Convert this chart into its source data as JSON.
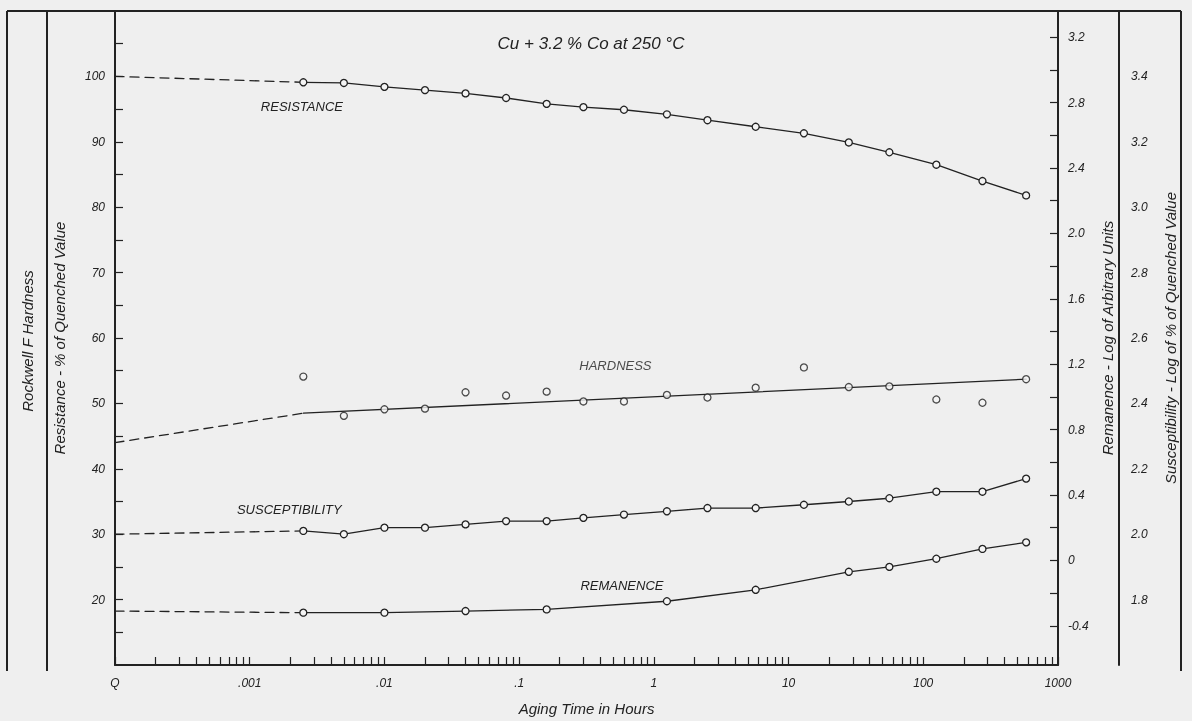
{
  "chart_data": {
    "type": "line",
    "title": "Cu + 3.2 % Co at 250 °C",
    "xlabel": "Aging Time in Hours",
    "ylabel": "Resistance - % of Quenched Value",
    "y2label": "Remanence - Log of Arbitrary Units",
    "y3label": "Susceptibility - Log of % of Quenched Value",
    "annotations": [
      "Rockwell F Hardness"
    ],
    "log": "x",
    "xlim": [
      0.0001,
      1000
    ],
    "xticks": [
      {
        "value": 0.0001,
        "label": "Q"
      },
      {
        "value": 0.0002,
        "label": null
      },
      {
        "value": 0.0003,
        "label": null
      },
      {
        "value": 0.0004,
        "label": null
      },
      {
        "value": 0.0005,
        "label": null
      },
      {
        "value": 0.0006,
        "label": null
      },
      {
        "value": 0.0007,
        "label": null
      },
      {
        "value": 0.0008,
        "label": null
      },
      {
        "value": 0.0009,
        "label": null
      },
      {
        "value": 0.001,
        "label": ".001"
      },
      {
        "value": 0.002,
        "label": null
      },
      {
        "value": 0.003,
        "label": null
      },
      {
        "value": 0.004,
        "label": null
      },
      {
        "value": 0.005,
        "label": null
      },
      {
        "value": 0.006,
        "label": null
      },
      {
        "value": 0.007,
        "label": null
      },
      {
        "value": 0.008,
        "label": null
      },
      {
        "value": 0.009,
        "label": null
      },
      {
        "value": 0.01,
        "label": ".01"
      },
      {
        "value": 0.02,
        "label": null
      },
      {
        "value": 0.03,
        "label": null
      },
      {
        "value": 0.04,
        "label": null
      },
      {
        "value": 0.05,
        "label": null
      },
      {
        "value": 0.06,
        "label": null
      },
      {
        "value": 0.07,
        "label": null
      },
      {
        "value": 0.08,
        "label": null
      },
      {
        "value": 0.09,
        "label": null
      },
      {
        "value": 0.1,
        "label": ".1"
      },
      {
        "value": 0.2,
        "label": null
      },
      {
        "value": 0.3,
        "label": null
      },
      {
        "value": 0.4,
        "label": null
      },
      {
        "value": 0.5,
        "label": null
      },
      {
        "value": 0.6,
        "label": null
      },
      {
        "value": 0.7,
        "label": null
      },
      {
        "value": 0.8,
        "label": null
      },
      {
        "value": 0.9,
        "label": null
      },
      1,
      {
        "value": 2,
        "label": null
      },
      {
        "value": 3,
        "label": null
      },
      {
        "value": 4,
        "label": null
      },
      {
        "value": 5,
        "label": null
      },
      {
        "value": 6,
        "label": null
      },
      {
        "value": 7,
        "label": null
      },
      {
        "value": 8,
        "label": null
      },
      {
        "value": 9,
        "label": null
      },
      10,
      {
        "value": 20,
        "label": null
      },
      {
        "value": 30,
        "label": null
      },
      {
        "value": 40,
        "label": null
      },
      {
        "value": 50,
        "label": null
      },
      {
        "value": 60,
        "label": null
      },
      {
        "value": 70,
        "label": null
      },
      {
        "value": 80,
        "label": null
      },
      {
        "value": 90,
        "label": null
      },
      100,
      {
        "value": 200,
        "label": null
      },
      {
        "value": 300,
        "label": null
      },
      {
        "value": 400,
        "label": null
      },
      {
        "value": 500,
        "label": null
      },
      {
        "value": 600,
        "label": null
      },
      {
        "value": 700,
        "label": null
      },
      {
        "value": 800,
        "label": null
      },
      {
        "value": 900,
        "label": null
      },
      1000
    ],
    "ylim": [
      10,
      110
    ],
    "yticks": [
      {
        "value": 15,
        "label": null
      },
      20,
      {
        "value": 25,
        "label": null
      },
      30,
      {
        "value": 35,
        "label": null
      },
      40,
      {
        "value": 45,
        "label": null
      },
      50,
      {
        "value": 55,
        "label": null
      },
      60,
      {
        "value": 65,
        "label": null
      },
      70,
      {
        "value": 75,
        "label": null
      },
      80,
      {
        "value": 85,
        "label": null
      },
      90,
      {
        "value": 95,
        "label": null
      },
      100,
      {
        "value": 105,
        "label": null
      }
    ],
    "y2lim": [
      -0.64,
      3.36
    ],
    "y2ticks": [
      -0.4,
      {
        "value": -0.2,
        "label": null
      },
      0,
      {
        "value": 0.2,
        "label": null
      },
      0.4,
      {
        "value": 0.6,
        "label": null
      },
      0.8,
      {
        "value": 1,
        "label": null
      },
      1.2,
      {
        "value": 1.4,
        "label": null
      },
      1.6,
      {
        "value": 1.8,
        "label": null
      },
      {
        "value": 2,
        "label": "2.0"
      },
      {
        "value": 2.2,
        "label": null
      },
      2.4,
      {
        "value": 2.6,
        "label": null
      },
      2.8,
      {
        "value": 3,
        "label": null
      },
      3.2
    ],
    "y3lim": [
      1.6,
      3.6
    ],
    "y3ticks": [
      1.8,
      {
        "value": 2,
        "label": "2.0"
      },
      2.2,
      2.4,
      2.6,
      2.8,
      {
        "value": 3,
        "label": "3.0"
      },
      3.2,
      3.4
    ],
    "series": [
      {
        "name": "RESISTANCE",
        "type": "line",
        "marker": "circle",
        "color": "#222222",
        "x": [
          0.0025,
          0.005,
          0.01,
          0.02,
          0.04,
          0.08,
          0.16,
          0.3,
          0.6,
          1.25,
          2.5,
          5.7,
          13,
          28,
          56,
          125,
          275,
          580
        ],
        "values": [
          99.1,
          99.0,
          98.4,
          97.9,
          97.4,
          96.7,
          95.8,
          95.3,
          94.9,
          94.2,
          93.3,
          92.3,
          91.3,
          89.9,
          88.4,
          86.5,
          84.0,
          81.8
        ]
      },
      {
        "type": "line",
        "line_style": "dashed",
        "marker": "none",
        "color": "#222222",
        "x": [
          0.0001,
          0.0025
        ],
        "values": [
          100,
          99.1
        ]
      },
      {
        "name": "HARDNESS",
        "type": "scatter",
        "marker": "circle",
        "color": "#222222",
        "x": [
          0.0025,
          0.005,
          0.01,
          0.02,
          0.04,
          0.08,
          0.16,
          0.3,
          0.6,
          1.25,
          2.5,
          5.7,
          13,
          28,
          56,
          125,
          275,
          580
        ],
        "values": [
          54.1,
          48.1,
          49.1,
          49.2,
          51.7,
          51.2,
          51.8,
          50.3,
          50.3,
          51.3,
          50.9,
          52.4,
          55.5,
          52.5,
          52.6,
          50.6,
          50.1,
          53.7
        ]
      },
      {
        "type": "line",
        "marker": "none",
        "color": "#222222",
        "x": [
          0.0025,
          580
        ],
        "values": [
          48.5,
          53.7
        ]
      },
      {
        "type": "line",
        "line_style": "dashed",
        "marker": "none",
        "color": "#222222",
        "x": [
          0.0001,
          0.0025
        ],
        "values": [
          44.0,
          48.5
        ]
      },
      {
        "name": "SUSCEPTIBILITY",
        "type": "line",
        "axis": "y3",
        "marker": "circle",
        "color": "#222222",
        "x": [
          0.0025,
          0.005,
          0.01,
          0.02,
          0.04,
          0.08,
          0.16,
          0.3,
          0.6,
          1.25,
          2.5,
          5.7,
          13,
          28,
          56,
          125,
          275,
          580
        ],
        "values": [
          2.01,
          2.0,
          2.02,
          2.02,
          2.03,
          2.04,
          2.04,
          2.05,
          2.06,
          2.07,
          2.08,
          2.08,
          2.09,
          2.1,
          2.11,
          2.13,
          2.13,
          2.17
        ]
      },
      {
        "type": "line",
        "axis": "y3",
        "line_style": "dashed",
        "marker": "none",
        "color": "#222222",
        "x": [
          0.0001,
          0.0025
        ],
        "values": [
          2.0,
          2.01
        ]
      },
      {
        "name": "REMANENCE",
        "type": "line",
        "axis": "y2",
        "marker": "circle",
        "color": "#222222",
        "x": [
          0.0025,
          0.01,
          0.04,
          0.16,
          1.25,
          5.7,
          28,
          56,
          125,
          275,
          580
        ],
        "values": [
          -0.32,
          -0.32,
          -0.31,
          -0.3,
          -0.25,
          -0.18,
          -0.07,
          -0.04,
          0.01,
          0.07,
          0.11
        ]
      },
      {
        "type": "line",
        "axis": "y2",
        "line_style": "dashed",
        "marker": "none",
        "color": "#222222",
        "x": [
          0.0001,
          0.0025
        ],
        "values": [
          -0.31,
          -0.32
        ]
      }
    ]
  }
}
